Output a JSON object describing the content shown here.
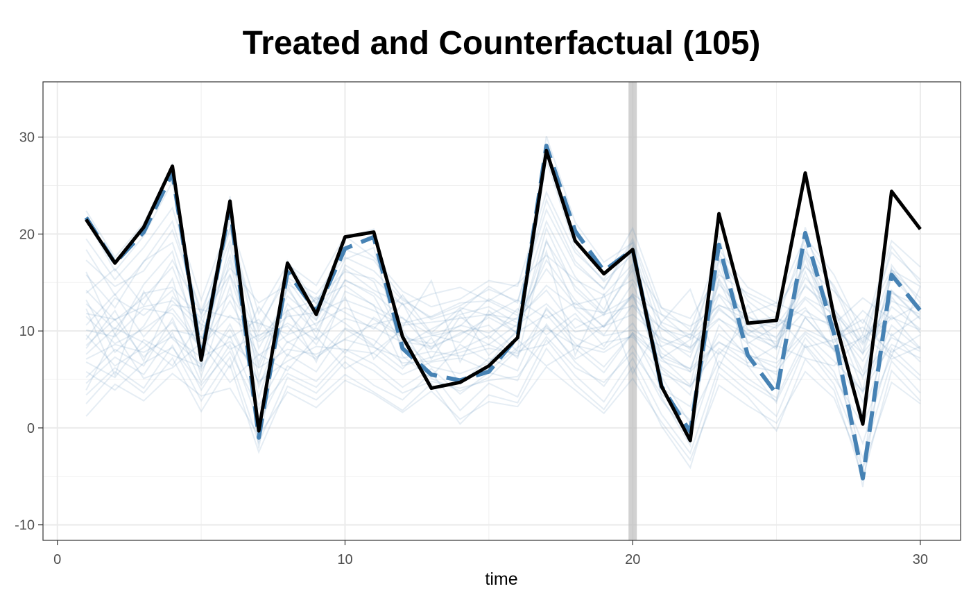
{
  "chart_data": {
    "type": "line",
    "title": "Treated and Counterfactual (105)",
    "xlabel": "time",
    "ylabel": "",
    "xlim": [
      -0.5,
      31.4
    ],
    "ylim": [
      -11.6,
      35.7
    ],
    "x_ticks": [
      0,
      10,
      20,
      30
    ],
    "y_ticks": [
      -10,
      0,
      10,
      20,
      30
    ],
    "x_tick_labels": [
      "0",
      "10",
      "20",
      "30"
    ],
    "y_tick_labels": [
      "-10",
      "0",
      "10",
      "20",
      "30"
    ],
    "grid": true,
    "treatment_time": 20,
    "x": [
      1,
      2,
      3,
      4,
      5,
      6,
      7,
      8,
      9,
      10,
      11,
      12,
      13,
      14,
      15,
      16,
      17,
      18,
      19,
      20,
      21,
      22,
      23,
      24,
      25,
      26,
      27,
      28,
      29,
      30
    ],
    "series": [
      {
        "role": "treated",
        "color": "#000000",
        "values": [
          21.5,
          17,
          20.7,
          27,
          7,
          23.4,
          -0.3,
          17,
          11.7,
          19.7,
          20.2,
          9.4,
          4.1,
          4.7,
          6.4,
          9.3,
          28.6,
          19.3,
          15.9,
          18.4,
          4.3,
          -1.3,
          22.1,
          10.8,
          11.1,
          26.3,
          11.5,
          0.4,
          24.4,
          20.5
        ]
      },
      {
        "role": "counterfactual",
        "color": "#4682b4",
        "values": [
          21.7,
          17,
          20.2,
          26.3,
          7.3,
          22.8,
          -1,
          16.1,
          12,
          18.5,
          19.7,
          8.2,
          5.5,
          4.9,
          5.8,
          9.4,
          29.1,
          20.3,
          16.2,
          18.4,
          4.3,
          -0.4,
          18.9,
          7.5,
          3.5,
          20.1,
          9.7,
          -5.2,
          15.8,
          12.1
        ]
      }
    ],
    "controls_color": "#4682b4",
    "controls": [
      [
        21.5,
        16.2,
        19.8,
        25.4,
        6.1,
        22.3,
        -2.1,
        15.3,
        11.2,
        17.4,
        18.6,
        7.4,
        5.1,
        3.8,
        5.2,
        8.1,
        27.6,
        18.5,
        15.1,
        17.9,
        3.2,
        -1.8,
        17.5,
        6.4,
        2.6,
        18.9,
        8.5,
        -6.1,
        14.2,
        11.3
      ],
      [
        22.4,
        17.6,
        21.1,
        27.2,
        8.2,
        23.9,
        0.1,
        17.2,
        12.8,
        19.6,
        20.5,
        9.2,
        6.3,
        5.6,
        6.7,
        10.2,
        30.1,
        21.2,
        17.1,
        19.1,
        5.3,
        0.4,
        19.8,
        8.6,
        4.4,
        20.7,
        10.5,
        -4.4,
        16.8,
        12.9
      ],
      [
        8.5,
        11.2,
        7.3,
        10.1,
        9.4,
        6.2,
        12.5,
        8.8,
        10.3,
        7.7,
        11.4,
        9.6,
        8.1,
        12.2,
        7.5,
        9.9,
        11.7,
        8.3,
        10.6,
        13.5,
        7.2,
        9.1,
        11.3,
        8.7,
        10.5,
        12.4,
        7.9,
        9.3,
        11.6,
        8.2
      ],
      [
        12.3,
        5.4,
        14.1,
        9.2,
        6.5,
        17.3,
        4.2,
        11.8,
        8.6,
        13.5,
        7.1,
        10.4,
        15.2,
        6.8,
        12.1,
        9.7,
        18.2,
        7.5,
        13.8,
        5.6,
        10.9,
        14.3,
        6.2,
        12.7,
        8.3,
        16.1,
        9.5,
        11.2,
        7.4,
        14.6
      ],
      [
        5.2,
        8.1,
        6.4,
        11.3,
        4.7,
        9.5,
        2.3,
        7.6,
        5.8,
        10.2,
        8.4,
        6.1,
        9.3,
        4.5,
        7.2,
        5.9,
        12.4,
        8.7,
        6.3,
        9.8,
        4.1,
        2.2,
        10.6,
        7.3,
        5.5,
        11.4,
        8.1,
        1.5,
        9.7,
        6.8
      ],
      [
        15.8,
        12.4,
        17.2,
        19.1,
        10.3,
        20.5,
        8.2,
        13.6,
        11.1,
        16.4,
        14.2,
        12.8,
        9.7,
        10.5,
        13.3,
        11.9,
        21.3,
        15.6,
        12.2,
        18.7,
        9.4,
        7.3,
        14.8,
        11.6,
        9.2,
        15.5,
        12.3,
        7.6,
        16.2,
        13.4
      ],
      [
        3.4,
        6.2,
        4.1,
        8.5,
        2.8,
        7.3,
        -1.5,
        5.2,
        3.6,
        6.8,
        4.4,
        2.9,
        5.7,
        1.8,
        4.6,
        3.2,
        9.1,
        5.4,
        2.7,
        7.2,
        1.4,
        -2.6,
        6.3,
        3.8,
        1.2,
        8.4,
        4.5,
        -3.1,
        6.9,
        3.6
      ],
      [
        10.1,
        9.4,
        12.3,
        11.8,
        8.2,
        13.1,
        7.5,
        9.6,
        10.8,
        12.4,
        11.2,
        9.3,
        8.7,
        10.6,
        9.8,
        11.4,
        14.2,
        10.3,
        11.7,
        12.6,
        8.9,
        7.8,
        12.2,
        10.1,
        9.4,
        13.3,
        10.7,
        6.9,
        12.5,
        10.2
      ],
      [
        13.2,
        7.8,
        10.5,
        15.4,
        5.3,
        14.6,
        3.1,
        12.2,
        6.8,
        14.1,
        12.7,
        6.4,
        7.3,
        8.1,
        9.5,
        7.2,
        19.4,
        12.3,
        9.6,
        13.8,
        6.1,
        3.4,
        15.2,
        8.9,
        7.1,
        17.6,
        9.3,
        2.7,
        13.5,
        9.8
      ],
      [
        7.6,
        10.3,
        8.8,
        6.4,
        11.2,
        8.1,
        9.6,
        10.5,
        7.3,
        9.2,
        10.7,
        11.4,
        8.2,
        9.8,
        10.6,
        7.9,
        8.6,
        11.3,
        9.5,
        10.1,
        8.4,
        9.7,
        7.6,
        10.9,
        11.5,
        8.3,
        9.1,
        10.4,
        7.8,
        9.6
      ],
      [
        17.3,
        14.6,
        16.2,
        20.4,
        12.1,
        19.3,
        10.4,
        15.5,
        13.8,
        17.6,
        16.2,
        13.2,
        11.4,
        12.6,
        14.3,
        13.1,
        22.5,
        16.8,
        14.4,
        19.5,
        11.7,
        9.2,
        17.3,
        13.6,
        11.8,
        18.2,
        14.7,
        8.9,
        18.1,
        15.3
      ],
      [
        1.2,
        4.5,
        2.8,
        5.6,
        3.3,
        4.1,
        -0.8,
        3.7,
        2.1,
        4.9,
        3.5,
        1.6,
        3.8,
        0.9,
        2.7,
        2.2,
        6.3,
        3.9,
        1.5,
        5.1,
        0.6,
        -3.3,
        4.4,
        2.3,
        0.5,
        5.8,
        3.1,
        -4.2,
        4.7,
        2.5
      ],
      [
        9.1,
        13.4,
        11.6,
        14.2,
        7.8,
        15.7,
        6.3,
        12.8,
        9.9,
        15.3,
        13.6,
        8.5,
        10.2,
        11.7,
        12.5,
        10.8,
        17.3,
        13.2,
        10.4,
        14.9,
        7.7,
        6.1,
        13.7,
        9.6,
        8.3,
        14.8,
        11.4,
        5.8,
        14.1,
        11.2
      ],
      [
        6.8,
        5.2,
        9.1,
        7.5,
        6.3,
        10.2,
        4.8,
        6.9,
        8.4,
        8.1,
        7.7,
        5.5,
        6.8,
        7.2,
        5.9,
        8.3,
        10.5,
        7.1,
        8.8,
        9.4,
        5.6,
        4.3,
        8.2,
        6.4,
        5.8,
        9.7,
        6.9,
        3.8,
        8.6,
        7.2
      ],
      [
        14.2,
        11.1,
        13.4,
        16.6,
        9.2,
        17.8,
        6.7,
        14.3,
        10.5,
        15.2,
        13.9,
        11.3,
        9.6,
        8.8,
        11.7,
        10.4,
        19.2,
        14.6,
        11.8,
        16.3,
        8.3,
        5.8,
        15.4,
        10.7,
        8.6,
        16.8,
        12.2,
        5.1,
        15.6,
        12.4
      ],
      [
        11.5,
        8.7,
        10.2,
        12.3,
        8.4,
        11.6,
        8.9,
        10.8,
        9.1,
        11.3,
        10.4,
        8.8,
        9.5,
        10.1,
        8.6,
        10.7,
        12.8,
        9.9,
        10.5,
        11.7,
        9.2,
        8.3,
        11.2,
        9.6,
        8.9,
        12.1,
        10.3,
        7.7,
        11.4,
        10.1
      ],
      [
        4.6,
        7.3,
        5.5,
        9.8,
        3.9,
        8.6,
        0.5,
        6.4,
        4.8,
        8.1,
        6.6,
        4.2,
        6.1,
        3.5,
        5.7,
        4.9,
        10.7,
        6.8,
        4.3,
        8.5,
        2.9,
        -0.9,
        7.9,
        5.1,
        3.1,
        9.3,
        5.8,
        -1.6,
        8.2,
        5.4
      ],
      [
        19.5,
        15.3,
        18.6,
        22.7,
        13.2,
        21.4,
        11.8,
        16.9,
        14.7,
        19.8,
        17.6,
        14.1,
        12.5,
        13.3,
        15.2,
        14.6,
        24.3,
        18.1,
        15.3,
        20.6,
        12.4,
        10.1,
        18.4,
        14.5,
        12.9,
        19.7,
        15.8,
        9.7,
        19.3,
        16.6
      ],
      [
        8.2,
        12.1,
        6.9,
        13.5,
        10.7,
        9.3,
        11.2,
        7.4,
        12.6,
        10.8,
        8.5,
        12.9,
        7.1,
        11.5,
        9.2,
        12.3,
        9.6,
        11.8,
        8.4,
        12.7,
        10.3,
        8.1,
        12.4,
        9.7,
        11.3,
        10.2,
        8.8,
        12.1,
        9.5,
        11.6
      ],
      [
        2.5,
        5.8,
        3.6,
        7.2,
        1.7,
        6.5,
        -2.5,
        4.3,
        2.9,
        5.5,
        3.7,
        1.8,
        4.6,
        0.4,
        3.4,
        2.6,
        8.2,
        4.5,
        1.9,
        6.3,
        0.2,
        -4.1,
        5.6,
        3.2,
        -0.3,
        7.1,
        3.9,
        -5.2,
        5.9,
        2.8
      ],
      [
        12.8,
        10.2,
        13.9,
        14.5,
        11.3,
        15.8,
        9.4,
        12.1,
        13.2,
        14.7,
        12.6,
        10.8,
        11.5,
        12.9,
        13.1,
        11.6,
        16.4,
        12.7,
        13.5,
        15.3,
        10.9,
        9.6,
        13.8,
        11.4,
        10.6,
        14.6,
        12.2,
        8.8,
        13.9,
        12.5
      ],
      [
        16.1,
        9.6,
        14.8,
        18.2,
        7.5,
        18.9,
        5.2,
        14.7,
        9.3,
        16.8,
        15.1,
        8.9,
        8.4,
        9.6,
        11.4,
        9.8,
        20.6,
        14.2,
        11.6,
        16.7,
        7.2,
        4.4,
        16.3,
        10.2,
        8.1,
        17.9,
        11.6,
        3.9,
        16.4,
        11.9
      ],
      [
        7.1,
        8.6,
        7.8,
        9.4,
        7.3,
        8.9,
        6.2,
        8.1,
        7.6,
        9.1,
        8.3,
        7.2,
        7.9,
        7.4,
        8.2,
        7.7,
        10.3,
        8.5,
        7.8,
        9.6,
        6.9,
        5.8,
        8.8,
        7.5,
        6.7,
        9.9,
        8.1,
        5.4,
        9.3,
        7.9
      ],
      [
        10.6,
        13.8,
        9.4,
        12.7,
        12.2,
        11.4,
        10.8,
        9.7,
        13.5,
        11.9,
        10.2,
        13.7,
        9.8,
        12.4,
        11.6,
        13.2,
        11.3,
        12.9,
        10.4,
        13.8,
        11.7,
        10.5,
        12.6,
        11.8,
        12.9,
        11.5,
        10.7,
        13.4,
        11.2,
        12.8
      ],
      [
        5.8,
        3.9,
        6.7,
        8.3,
        4.4,
        7.9,
        1.9,
        5.6,
        4.2,
        7.4,
        5.9,
        3.6,
        4.8,
        4.1,
        4.9,
        5.3,
        9.4,
        6.2,
        4.7,
        7.8,
        3.5,
        0.8,
        6.9,
        4.6,
        2.8,
        8.6,
        5.2,
        0.3,
        7.5,
        4.9
      ],
      [
        13.9,
        16.4,
        12.6,
        17.3,
        11.8,
        16.5,
        12.9,
        14.8,
        13.3,
        16.1,
        15.4,
        12.7,
        13.8,
        14.5,
        13.1,
        14.9,
        17.8,
        15.3,
        13.7,
        16.9,
        12.4,
        11.3,
        15.8,
        13.9,
        12.5,
        16.6,
        14.1,
        10.8,
        16.3,
        14.6
      ],
      [
        9.6,
        6.4,
        8.3,
        10.9,
        5.9,
        10.7,
        4.6,
        8.9,
        7.1,
        10.3,
        9.1,
        6.7,
        6.9,
        7.8,
        8.6,
        7.4,
        12.2,
        9.3,
        8.1,
        10.8,
        6.3,
        4.2,
        9.7,
        7.6,
        6.2,
        11.4,
        8.3,
        3.6,
        10.6,
        8.1
      ],
      [
        18.4,
        13.7,
        17.1,
        21.3,
        11.6,
        20.6,
        9.9,
        16.3,
        12.8,
        18.4,
        17.3,
        13.4,
        11.2,
        12.1,
        14.6,
        12.9,
        23.5,
        17.2,
        14.3,
        19.2,
        10.6,
        8.3,
        17.9,
        13.1,
        10.8,
        19.5,
        14.4,
        7.9,
        18.7,
        14.9
      ],
      [
        3.9,
        9.7,
        5.1,
        6.2,
        8.8,
        4.7,
        7.6,
        5.9,
        9.4,
        6.1,
        7.8,
        10.2,
        5.3,
        8.6,
        6.8,
        9.1,
        6.4,
        8.2,
        5.7,
        9.8,
        7.3,
        6.1,
        8.9,
        6.7,
        8.5,
        7.2,
        6.4,
        9.6,
        7.1,
        8.4
      ],
      [
        11.8,
        11.2,
        12.5,
        13.1,
        10.1,
        13.8,
        9.1,
        11.5,
        11.9,
        13.2,
        12.1,
        10.6,
        10.9,
        11.3,
        11.7,
        11.2,
        14.7,
        12.4,
        11.9,
        13.6,
        10.2,
        9.3,
        12.7,
        11.1,
        10.3,
        13.5,
        11.8,
        8.6,
        13.1,
        11.7
      ]
    ]
  }
}
